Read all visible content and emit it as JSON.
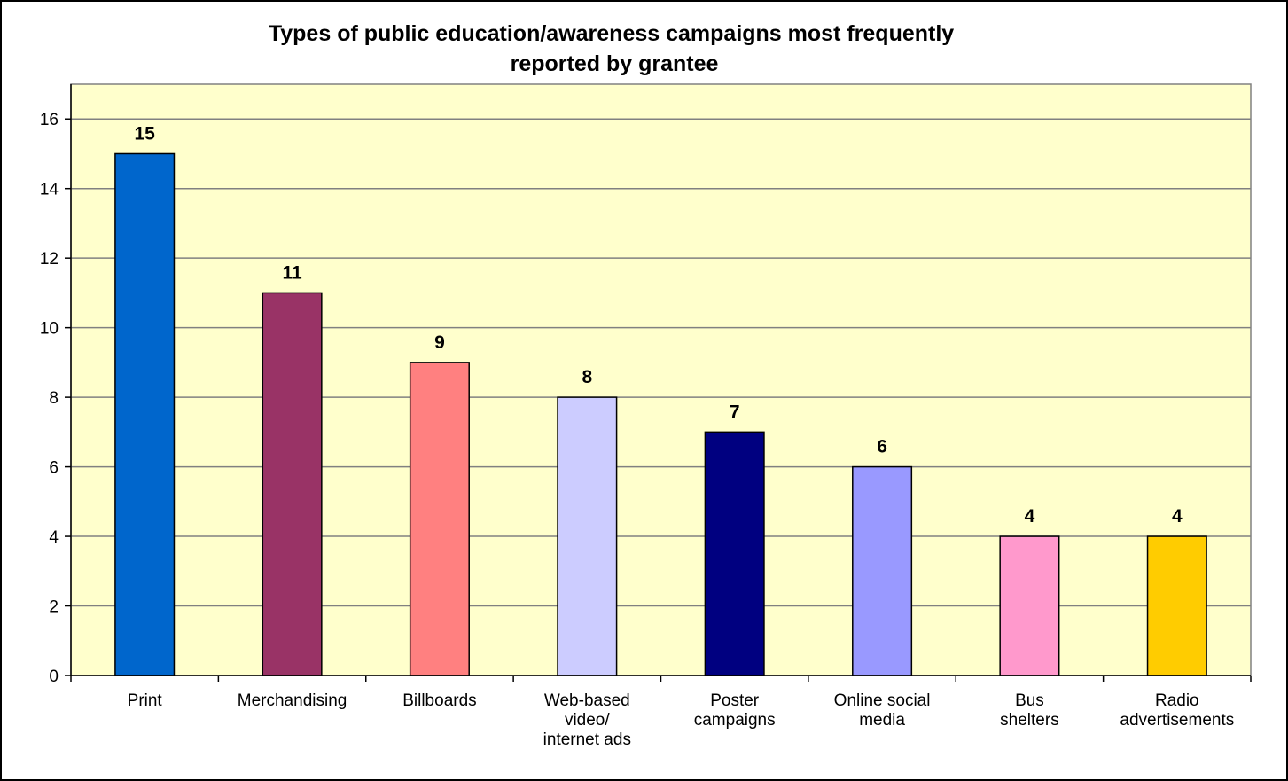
{
  "chart_data": {
    "type": "bar",
    "title": [
      "Types of public education/awareness campaigns most frequently",
      "reported by grantee"
    ],
    "xlabel": "",
    "ylabel": "",
    "categories": [
      [
        "Print"
      ],
      [
        "Merchandising"
      ],
      [
        "Billboards"
      ],
      [
        "Web-based",
        "video/",
        "internet ads"
      ],
      [
        "Poster",
        "campaigns"
      ],
      [
        "Online social",
        "media"
      ],
      [
        "Bus",
        "shelters"
      ],
      [
        "Radio",
        "advertisements"
      ]
    ],
    "values": [
      15,
      11,
      9,
      8,
      7,
      6,
      4,
      4
    ],
    "data_labels": [
      "15",
      "11",
      "9",
      "8",
      "7",
      "6",
      "4",
      "4"
    ],
    "colors": [
      "#0066CC",
      "#993366",
      "#FF8080",
      "#CCCCFF",
      "#000080",
      "#9999FF",
      "#FF99CC",
      "#FFCC00"
    ],
    "ylim": [
      0,
      17
    ],
    "yticks": [
      0,
      2,
      4,
      6,
      8,
      10,
      12,
      14,
      16
    ],
    "ytick_labels": [
      "0",
      "2",
      "4",
      "6",
      "8",
      "10",
      "12",
      "14",
      "16"
    ],
    "grid": true,
    "legend": "none",
    "plot_background": "#FFFFCC",
    "gridline_color": "#808080"
  }
}
